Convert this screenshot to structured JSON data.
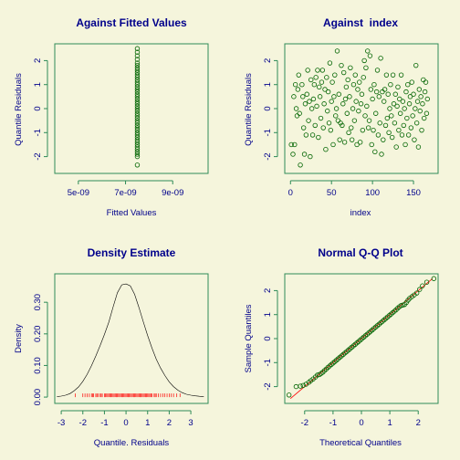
{
  "colors": {
    "background": "#f5f5dc",
    "frame": "#2e8b57",
    "points": "#006400",
    "text": "#00008b",
    "rug": "#ff0000",
    "density": "#000000"
  },
  "chart_data": [
    {
      "type": "scatter",
      "title": "Against Fitted Values",
      "xlabel": "Fitted Values",
      "ylabel": "Quantile Residuals",
      "xlim": [
        4e-09,
        1.05e-08
      ],
      "ylim": [
        -2.7,
        2.7
      ],
      "x_ticks": [
        "5e-09",
        "7e-09",
        "9e-09"
      ],
      "x_tick_values": [
        5e-09,
        7e-09,
        9e-09
      ],
      "y_ticks": [
        "-2",
        "-1",
        "0",
        "1",
        "2"
      ],
      "y_tick_values": [
        -2,
        -1,
        0,
        1,
        2
      ],
      "points": [
        [
          7.5e-09,
          2.5
        ],
        [
          7.5e-09,
          2.35
        ],
        [
          7.5e-09,
          2.2
        ],
        [
          7.5e-09,
          2.05
        ],
        [
          7.5e-09,
          1.9
        ],
        [
          7.5e-09,
          1.8
        ],
        [
          7.5e-09,
          1.7
        ],
        [
          7.5e-09,
          1.6
        ],
        [
          7.5e-09,
          1.5
        ],
        [
          7.5e-09,
          1.4
        ],
        [
          7.5e-09,
          1.3
        ],
        [
          7.5e-09,
          1.2
        ],
        [
          7.5e-09,
          1.1
        ],
        [
          7.5e-09,
          1.0
        ],
        [
          7.5e-09,
          0.9
        ],
        [
          7.5e-09,
          0.8
        ],
        [
          7.5e-09,
          0.7
        ],
        [
          7.5e-09,
          0.6
        ],
        [
          7.5e-09,
          0.5
        ],
        [
          7.5e-09,
          0.4
        ],
        [
          7.5e-09,
          0.3
        ],
        [
          7.5e-09,
          0.2
        ],
        [
          7.5e-09,
          0.1
        ],
        [
          7.5e-09,
          0.0
        ],
        [
          7.5e-09,
          -0.1
        ],
        [
          7.5e-09,
          -0.2
        ],
        [
          7.5e-09,
          -0.3
        ],
        [
          7.5e-09,
          -0.4
        ],
        [
          7.5e-09,
          -0.5
        ],
        [
          7.5e-09,
          -0.6
        ],
        [
          7.5e-09,
          -0.7
        ],
        [
          7.5e-09,
          -0.8
        ],
        [
          7.5e-09,
          -0.9
        ],
        [
          7.5e-09,
          -1.0
        ],
        [
          7.5e-09,
          -1.1
        ],
        [
          7.5e-09,
          -1.2
        ],
        [
          7.5e-09,
          -1.3
        ],
        [
          7.5e-09,
          -1.4
        ],
        [
          7.5e-09,
          -1.5
        ],
        [
          7.5e-09,
          -1.6
        ],
        [
          7.5e-09,
          -1.7
        ],
        [
          7.5e-09,
          -1.8
        ],
        [
          7.5e-09,
          -1.9
        ],
        [
          7.5e-09,
          -2.0
        ],
        [
          7.5e-09,
          -2.35
        ]
      ]
    },
    {
      "type": "scatter",
      "title": "Against  index",
      "xlabel": "index",
      "ylabel": "Quantile Residuals",
      "xlim": [
        -7,
        180
      ],
      "ylim": [
        -2.7,
        2.7
      ],
      "x_ticks": [
        "0",
        "50",
        "100",
        "150"
      ],
      "x_tick_values": [
        0,
        50,
        100,
        150
      ],
      "y_ticks": [
        "-2",
        "-1",
        "0",
        "1",
        "2"
      ],
      "y_tick_values": [
        -2,
        -1,
        0,
        1,
        2
      ],
      "points": [
        [
          1,
          -1.5
        ],
        [
          3,
          -1.9
        ],
        [
          4,
          0.5
        ],
        [
          5,
          -1.5
        ],
        [
          6,
          1.0
        ],
        [
          7,
          0.0
        ],
        [
          8,
          -0.3
        ],
        [
          9,
          0.8
        ],
        [
          10,
          1.4
        ],
        [
          11,
          -0.2
        ],
        [
          12,
          -2.35
        ],
        [
          14,
          1.0
        ],
        [
          15,
          0.5
        ],
        [
          16,
          -0.8
        ],
        [
          17,
          -1.9
        ],
        [
          18,
          0.2
        ],
        [
          19,
          -1.1
        ],
        [
          20,
          0.6
        ],
        [
          21,
          1.6
        ],
        [
          22,
          -0.5
        ],
        [
          23,
          0.3
        ],
        [
          24,
          -2.0
        ],
        [
          25,
          1.2
        ],
        [
          26,
          0.0
        ],
        [
          27,
          -1.1
        ],
        [
          28,
          0.4
        ],
        [
          29,
          1.0
        ],
        [
          30,
          -0.7
        ],
        [
          31,
          1.3
        ],
        [
          32,
          0.1
        ],
        [
          33,
          1.6
        ],
        [
          34,
          -1.2
        ],
        [
          35,
          0.9
        ],
        [
          36,
          0.5
        ],
        [
          37,
          -0.4
        ],
        [
          38,
          1.1
        ],
        [
          39,
          1.6
        ],
        [
          40,
          -0.8
        ],
        [
          41,
          0.2
        ],
        [
          42,
          0.8
        ],
        [
          43,
          -1.7
        ],
        [
          44,
          1.3
        ],
        [
          45,
          -0.1
        ],
        [
          46,
          0.7
        ],
        [
          47,
          -0.6
        ],
        [
          48,
          1.9
        ],
        [
          49,
          -0.9
        ],
        [
          50,
          0.3
        ],
        [
          51,
          1.1
        ],
        [
          52,
          -1.5
        ],
        [
          53,
          0.5
        ],
        [
          54,
          1.4
        ],
        [
          55,
          -0.3
        ],
        [
          56,
          0.0
        ],
        [
          57,
          2.4
        ],
        [
          58,
          -0.5
        ],
        [
          59,
          0.6
        ],
        [
          60,
          -1.3
        ],
        [
          61,
          -0.6
        ],
        [
          62,
          1.8
        ],
        [
          63,
          -0.7
        ],
        [
          64,
          0.2
        ],
        [
          65,
          1.5
        ],
        [
          66,
          -1.4
        ],
        [
          67,
          0.4
        ],
        [
          68,
          0.9
        ],
        [
          69,
          -0.2
        ],
        [
          70,
          1.2
        ],
        [
          71,
          -1.0
        ],
        [
          72,
          0.5
        ],
        [
          73,
          1.7
        ],
        [
          74,
          -0.8
        ],
        [
          75,
          -1.3
        ],
        [
          76,
          0.0
        ],
        [
          77,
          1.0
        ],
        [
          78,
          -0.5
        ],
        [
          79,
          1.4
        ],
        [
          80,
          0.3
        ],
        [
          81,
          -1.5
        ],
        [
          82,
          0.8
        ],
        [
          83,
          -0.1
        ],
        [
          84,
          1.1
        ],
        [
          85,
          -1.4
        ],
        [
          86,
          0.2
        ],
        [
          87,
          0.6
        ],
        [
          88,
          -0.9
        ],
        [
          89,
          1.3
        ],
        [
          90,
          2.0
        ],
        [
          91,
          -0.3
        ],
        [
          92,
          1.7
        ],
        [
          93,
          0.1
        ],
        [
          94,
          2.4
        ],
        [
          95,
          -0.8
        ],
        [
          96,
          -0.5
        ],
        [
          97,
          2.2
        ],
        [
          98,
          0.8
        ],
        [
          99,
          -1.5
        ],
        [
          100,
          0.4
        ],
        [
          101,
          -0.9
        ],
        [
          102,
          1.0
        ],
        [
          103,
          -1.8
        ],
        [
          104,
          -0.2
        ],
        [
          105,
          0.7
        ],
        [
          106,
          1.6
        ],
        [
          107,
          -1.1
        ],
        [
          108,
          0.5
        ],
        [
          109,
          -0.6
        ],
        [
          110,
          2.1
        ],
        [
          111,
          -1.9
        ],
        [
          112,
          0.7
        ],
        [
          113,
          -1.3
        ],
        [
          114,
          0.3
        ],
        [
          115,
          0.8
        ],
        [
          116,
          -0.7
        ],
        [
          117,
          1.4
        ],
        [
          118,
          -0.4
        ],
        [
          119,
          0.6
        ],
        [
          120,
          -1.0
        ],
        [
          121,
          0.0
        ],
        [
          122,
          1.0
        ],
        [
          123,
          -0.3
        ],
        [
          124,
          -1.2
        ],
        [
          125,
          1.4
        ],
        [
          126,
          0.2
        ],
        [
          127,
          -0.6
        ],
        [
          128,
          0.6
        ],
        [
          129,
          -1.6
        ],
        [
          130,
          0.1
        ],
        [
          131,
          0.9
        ],
        [
          132,
          -0.9
        ],
        [
          133,
          0.4
        ],
        [
          134,
          -0.2
        ],
        [
          135,
          1.4
        ],
        [
          136,
          -1.1
        ],
        [
          137,
          0.3
        ],
        [
          138,
          -0.7
        ],
        [
          139,
          0.0
        ],
        [
          140,
          -1.5
        ],
        [
          141,
          0.7
        ],
        [
          142,
          -0.4
        ],
        [
          143,
          1.0
        ],
        [
          144,
          -1.1
        ],
        [
          145,
          0.2
        ],
        [
          146,
          0.5
        ],
        [
          147,
          -0.8
        ],
        [
          148,
          1.1
        ],
        [
          149,
          -0.3
        ],
        [
          150,
          0.6
        ],
        [
          151,
          -1.3
        ],
        [
          152,
          0.0
        ],
        [
          153,
          1.8
        ],
        [
          154,
          -0.6
        ],
        [
          155,
          0.3
        ],
        [
          156,
          -1.6
        ],
        [
          157,
          0.8
        ],
        [
          158,
          -0.1
        ],
        [
          159,
          0.5
        ],
        [
          160,
          -0.9
        ],
        [
          161,
          0.2
        ],
        [
          162,
          1.2
        ],
        [
          163,
          -0.4
        ],
        [
          164,
          0.7
        ],
        [
          165,
          1.1
        ],
        [
          166,
          -0.2
        ],
        [
          167,
          0.4
        ]
      ]
    },
    {
      "type": "line",
      "title": "Density Estimate",
      "xlabel": "Quantile. Residuals",
      "ylabel": "Density",
      "xlim": [
        -3.3,
        3.8
      ],
      "ylim": [
        -0.02,
        0.39
      ],
      "x_ticks": [
        "-3",
        "-2",
        "-1",
        "0",
        "1",
        "2",
        "3"
      ],
      "x_tick_values": [
        -3,
        -2,
        -1,
        0,
        1,
        2,
        3
      ],
      "y_ticks": [
        "0.00",
        "0.10",
        "0.20",
        "0.30"
      ],
      "y_tick_values": [
        0,
        0.1,
        0.2,
        0.3
      ],
      "x": [
        -3.2,
        -3.0,
        -2.8,
        -2.6,
        -2.4,
        -2.2,
        -2.0,
        -1.8,
        -1.6,
        -1.4,
        -1.2,
        -1.0,
        -0.8,
        -0.6,
        -0.4,
        -0.2,
        0.0,
        0.2,
        0.4,
        0.6,
        0.8,
        1.0,
        1.2,
        1.4,
        1.6,
        1.8,
        2.0,
        2.2,
        2.4,
        2.6,
        2.8,
        3.0,
        3.2,
        3.4,
        3.6
      ],
      "y": [
        0.0015,
        0.003,
        0.006,
        0.011,
        0.02,
        0.032,
        0.05,
        0.072,
        0.099,
        0.13,
        0.163,
        0.198,
        0.237,
        0.285,
        0.33,
        0.355,
        0.358,
        0.352,
        0.325,
        0.283,
        0.238,
        0.195,
        0.155,
        0.12,
        0.092,
        0.068,
        0.048,
        0.033,
        0.022,
        0.014,
        0.009,
        0.006,
        0.004,
        0.0025,
        0.0015
      ],
      "rug": [
        -2.35,
        -2.0,
        -1.9,
        -1.8,
        -1.7,
        -1.6,
        -1.55,
        -1.5,
        -1.4,
        -1.35,
        -1.3,
        -1.2,
        -1.15,
        -1.1,
        -1.0,
        -0.95,
        -0.9,
        -0.85,
        -0.8,
        -0.75,
        -0.7,
        -0.65,
        -0.6,
        -0.55,
        -0.5,
        -0.45,
        -0.4,
        -0.35,
        -0.3,
        -0.25,
        -0.2,
        -0.15,
        -0.1,
        -0.05,
        0.0,
        0.05,
        0.1,
        0.15,
        0.2,
        0.25,
        0.3,
        0.35,
        0.4,
        0.45,
        0.5,
        0.55,
        0.6,
        0.65,
        0.7,
        0.75,
        0.8,
        0.85,
        0.9,
        0.95,
        1.0,
        1.05,
        1.1,
        1.15,
        1.2,
        1.3,
        1.35,
        1.4,
        1.5,
        1.6,
        1.7,
        1.8,
        1.9,
        2.0,
        2.1,
        2.2,
        2.35,
        2.5
      ]
    },
    {
      "type": "scatter",
      "title": "Normal Q-Q Plot",
      "xlabel": "Theoretical Quantiles",
      "ylabel": "Sample Quantiles",
      "xlim": [
        -2.7,
        2.7
      ],
      "ylim": [
        -2.7,
        2.7
      ],
      "x_ticks": [
        "-2",
        "-1",
        "0",
        "1",
        "2"
      ],
      "x_tick_values": [
        -2,
        -1,
        0,
        1,
        2
      ],
      "y_ticks": [
        "-2",
        "-1",
        "0",
        "1",
        "2"
      ],
      "y_tick_values": [
        -2,
        -1,
        0,
        1,
        2
      ],
      "reference_line": [
        [
          -2.5,
          -2.5
        ],
        [
          2.5,
          2.5
        ]
      ],
      "points": [
        [
          -2.55,
          -2.35
        ],
        [
          -2.3,
          -2.0
        ],
        [
          -2.15,
          -1.98
        ],
        [
          -2.05,
          -1.95
        ],
        [
          -1.95,
          -1.9
        ],
        [
          -1.85,
          -1.82
        ],
        [
          -1.78,
          -1.75
        ],
        [
          -1.7,
          -1.68
        ],
        [
          -1.62,
          -1.6
        ],
        [
          -1.55,
          -1.52
        ],
        [
          -1.48,
          -1.5
        ],
        [
          -1.42,
          -1.45
        ],
        [
          -1.36,
          -1.4
        ],
        [
          -1.3,
          -1.33
        ],
        [
          -1.24,
          -1.27
        ],
        [
          -1.18,
          -1.2
        ],
        [
          -1.12,
          -1.14
        ],
        [
          -1.06,
          -1.08
        ],
        [
          -1.0,
          -1.02
        ],
        [
          -0.94,
          -0.96
        ],
        [
          -0.88,
          -0.9
        ],
        [
          -0.82,
          -0.84
        ],
        [
          -0.76,
          -0.78
        ],
        [
          -0.7,
          -0.72
        ],
        [
          -0.64,
          -0.66
        ],
        [
          -0.58,
          -0.6
        ],
        [
          -0.52,
          -0.54
        ],
        [
          -0.46,
          -0.48
        ],
        [
          -0.4,
          -0.42
        ],
        [
          -0.34,
          -0.36
        ],
        [
          -0.28,
          -0.3
        ],
        [
          -0.22,
          -0.24
        ],
        [
          -0.16,
          -0.18
        ],
        [
          -0.1,
          -0.12
        ],
        [
          -0.04,
          -0.06
        ],
        [
          0.02,
          0.0
        ],
        [
          0.08,
          0.06
        ],
        [
          0.14,
          0.12
        ],
        [
          0.2,
          0.18
        ],
        [
          0.26,
          0.24
        ],
        [
          0.32,
          0.3
        ],
        [
          0.38,
          0.36
        ],
        [
          0.44,
          0.42
        ],
        [
          0.5,
          0.48
        ],
        [
          0.56,
          0.54
        ],
        [
          0.62,
          0.6
        ],
        [
          0.68,
          0.66
        ],
        [
          0.74,
          0.72
        ],
        [
          0.8,
          0.78
        ],
        [
          0.86,
          0.84
        ],
        [
          0.92,
          0.9
        ],
        [
          0.98,
          0.96
        ],
        [
          1.04,
          1.02
        ],
        [
          1.1,
          1.08
        ],
        [
          1.16,
          1.14
        ],
        [
          1.22,
          1.2
        ],
        [
          1.28,
          1.27
        ],
        [
          1.34,
          1.33
        ],
        [
          1.4,
          1.38
        ],
        [
          1.46,
          1.4
        ],
        [
          1.52,
          1.42
        ],
        [
          1.58,
          1.5
        ],
        [
          1.64,
          1.6
        ],
        [
          1.7,
          1.68
        ],
        [
          1.78,
          1.75
        ],
        [
          1.86,
          1.82
        ],
        [
          1.95,
          1.9
        ],
        [
          2.05,
          2.05
        ],
        [
          2.15,
          2.2
        ],
        [
          2.3,
          2.35
        ],
        [
          2.55,
          2.5
        ]
      ]
    }
  ]
}
